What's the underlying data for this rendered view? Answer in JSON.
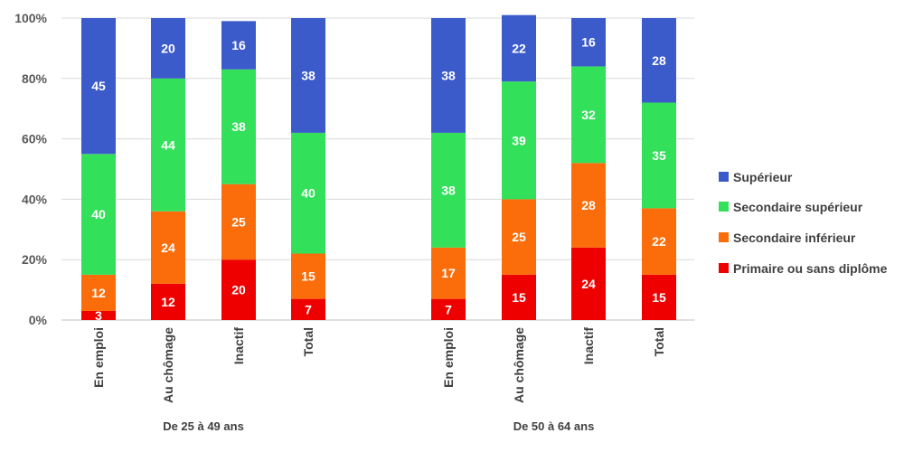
{
  "chart_data": {
    "type": "bar",
    "stacked": true,
    "groups": [
      {
        "label": "De 25 à 49 ans",
        "categories": [
          "En emploi",
          "Au chômage",
          "Inactif",
          "Total"
        ]
      },
      {
        "label": "De 50 à 64 ans",
        "categories": [
          "En emploi",
          "Au chômage",
          "Inactif",
          "Total"
        ]
      }
    ],
    "series": [
      {
        "name": "Primaire ou sans diplôme",
        "color": "#ee0000",
        "values": [
          3,
          12,
          20,
          7,
          7,
          15,
          24,
          15
        ]
      },
      {
        "name": "Secondaire inférieur",
        "color": "#fb6d0a",
        "values": [
          12,
          24,
          25,
          15,
          17,
          25,
          28,
          22
        ]
      },
      {
        "name": "Secondaire supérieur",
        "color": "#33e05a",
        "values": [
          40,
          44,
          38,
          40,
          38,
          39,
          32,
          35
        ]
      },
      {
        "name": "Supérieur",
        "color": "#3c5bcb",
        "values": [
          45,
          20,
          16,
          38,
          38,
          22,
          16,
          28
        ]
      }
    ],
    "y_ticks": [
      "0%",
      "20%",
      "40%",
      "60%",
      "80%",
      "100%"
    ],
    "ylim": [
      0,
      100
    ],
    "legend_position": "right",
    "grid": true
  }
}
